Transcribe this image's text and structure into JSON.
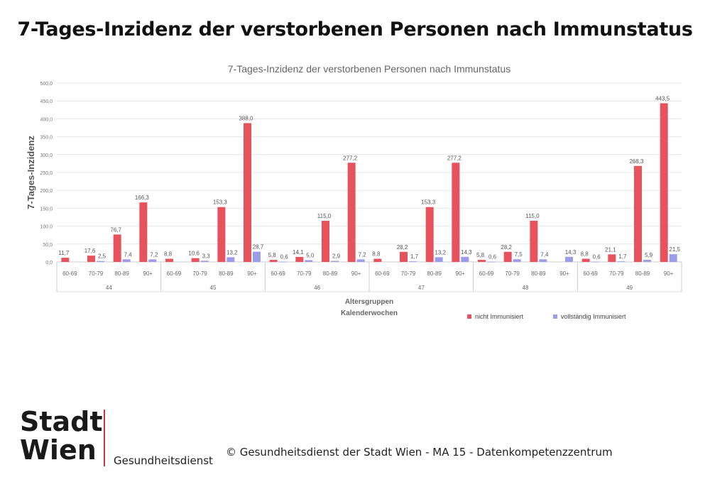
{
  "headline": "7-Tages-Inzidenz der verstorbenen Personen nach Immunstatus",
  "chart_data": {
    "type": "bar",
    "title": "7-Tages-Inzidenz der verstorbenen Personen nach Immunstatus",
    "ylabel": "7-Tages-Inzidenz",
    "xlabel_lines": [
      "Altersgruppen",
      "Kalenderwochen"
    ],
    "ylim": [
      0,
      500
    ],
    "yticks": [
      "0,0",
      "50,0",
      "100,0",
      "150,0",
      "200,0",
      "250,0",
      "300,0",
      "350,0",
      "400,0",
      "450,0",
      "500,0"
    ],
    "age_groups": [
      "60-69",
      "70-79",
      "80-89",
      "90+"
    ],
    "weeks": [
      "44",
      "45",
      "46",
      "47",
      "48",
      "49"
    ],
    "series": [
      {
        "name": "nicht Immunisiert",
        "color": "#e8525c",
        "values": [
          11.7,
          17.6,
          76.7,
          166.3,
          8.8,
          10.6,
          153.3,
          388.0,
          5.8,
          14.1,
          115.0,
          277.2,
          8.8,
          28.2,
          153.3,
          277.2,
          5.8,
          28.2,
          115.0,
          null,
          8.8,
          21.1,
          268.3,
          443.5
        ],
        "labels": [
          "11,7",
          "17,6",
          "76,7",
          "166,3",
          "8,8",
          "10,6",
          "153,3",
          "388,0",
          "5,8",
          "14,1",
          "115,0",
          "277,2",
          "8,8",
          "28,2",
          "153,3",
          "277,2",
          "5,8",
          "28,2",
          "115,0",
          "",
          "8,8",
          "21,1",
          "268,3",
          "443,5"
        ]
      },
      {
        "name": "vollständig Immunisiert",
        "color": "#9b9de8",
        "values": [
          null,
          2.5,
          7.4,
          7.2,
          null,
          3.3,
          13.2,
          28.7,
          0.6,
          5.0,
          2.9,
          7.2,
          null,
          1.7,
          13.2,
          14.3,
          0.6,
          7.5,
          7.4,
          14.3,
          0.6,
          1.7,
          5.9,
          21.5
        ],
        "labels": [
          "",
          "2,5",
          "7,4",
          "7,2",
          "",
          "3,3",
          "13,2",
          "28,7",
          "0,6",
          "5,0",
          "2,9",
          "7,2",
          "",
          "1,7",
          "13,2",
          "14,3",
          "0,6",
          "7,5",
          "7,4",
          "14,3",
          "0,6",
          "1,7",
          "5,9",
          "21,5"
        ]
      }
    ],
    "legend_position": "bottom-right"
  },
  "footer": {
    "brand_line1": "Stadt",
    "brand_line2": "Wien",
    "department": "Gesundheitsdienst",
    "copyright": "© Gesundheitsdienst der Stadt Wien - MA 15 - Datenkompetenzzentrum"
  }
}
